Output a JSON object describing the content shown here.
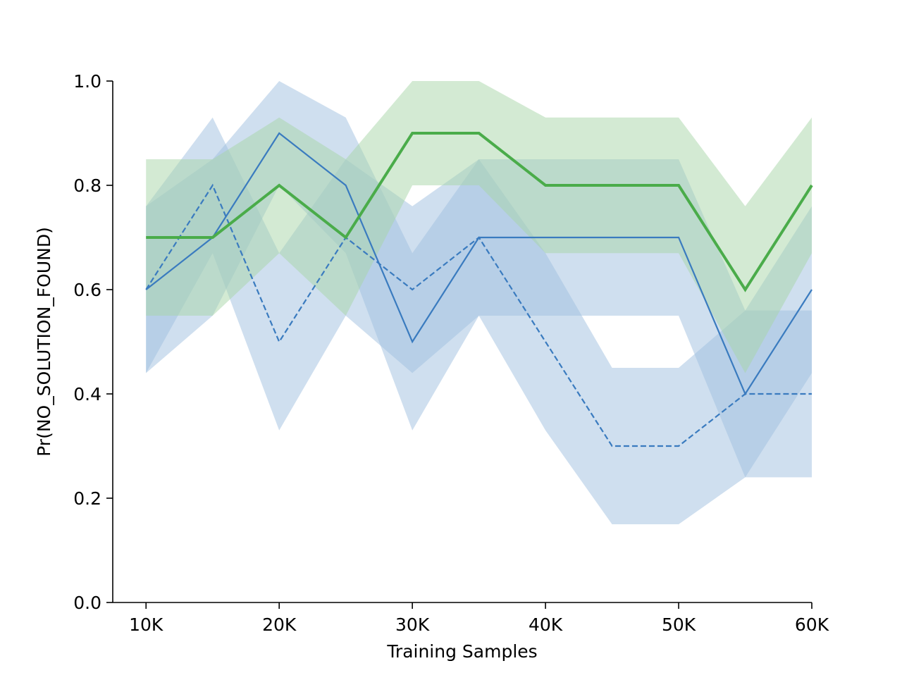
{
  "chart_data": {
    "type": "line",
    "title": "",
    "xlabel": "Training Samples",
    "ylabel": "Pr(NO_SOLUTION_FOUND)",
    "xlim": [
      7500,
      60000
    ],
    "ylim": [
      0.0,
      1.0
    ],
    "grid": false,
    "legend": "none",
    "x": [
      10000,
      15000,
      20000,
      25000,
      30000,
      35000,
      40000,
      45000,
      50000,
      55000,
      60000
    ],
    "xticks": [
      {
        "value": 10000,
        "label": "10K"
      },
      {
        "value": 20000,
        "label": "20K"
      },
      {
        "value": 30000,
        "label": "30K"
      },
      {
        "value": 40000,
        "label": "40K"
      },
      {
        "value": 50000,
        "label": "50K"
      },
      {
        "value": 60000,
        "label": "60K"
      }
    ],
    "yticks": [
      {
        "value": 0.0,
        "label": "0.0"
      },
      {
        "value": 0.2,
        "label": "0.2"
      },
      {
        "value": 0.4,
        "label": "0.4"
      },
      {
        "value": 0.6,
        "label": "0.6"
      },
      {
        "value": 0.8,
        "label": "0.8"
      },
      {
        "value": 1.0,
        "label": "1.0"
      }
    ],
    "series": [
      {
        "color": "#3a7bbf",
        "fill_color": "#9fbfdf",
        "line_style": "dashed",
        "line_width": "thin",
        "values": [
          0.6,
          0.8,
          0.5,
          0.7,
          0.6,
          0.7,
          0.5,
          0.3,
          0.3,
          0.4,
          0.4
        ],
        "lower": [
          0.44,
          0.67,
          0.33,
          0.55,
          0.44,
          0.55,
          0.33,
          0.15,
          0.15,
          0.24,
          0.24
        ],
        "upper": [
          0.76,
          0.93,
          0.67,
          0.85,
          0.76,
          0.85,
          0.67,
          0.45,
          0.45,
          0.56,
          0.56
        ]
      },
      {
        "color": "#3a7bbf",
        "fill_color": "#9fbfdf",
        "line_style": "solid",
        "line_width": "thin",
        "values": [
          0.6,
          0.7,
          0.9,
          0.8,
          0.5,
          0.7,
          0.7,
          0.7,
          0.7,
          0.4,
          0.6
        ],
        "lower": [
          0.44,
          0.55,
          0.8,
          0.67,
          0.33,
          0.55,
          0.55,
          0.55,
          0.55,
          0.24,
          0.44
        ],
        "upper": [
          0.76,
          0.85,
          1.0,
          0.93,
          0.67,
          0.85,
          0.85,
          0.85,
          0.85,
          0.56,
          0.76
        ]
      },
      {
        "color": "#4aac4a",
        "fill_color": "#a7d5a7",
        "line_style": "solid",
        "line_width": "thick",
        "values": [
          0.7,
          0.7,
          0.8,
          0.7,
          0.9,
          0.9,
          0.8,
          0.8,
          0.8,
          0.6,
          0.8
        ],
        "lower": [
          0.55,
          0.55,
          0.67,
          0.55,
          0.8,
          0.8,
          0.67,
          0.67,
          0.67,
          0.44,
          0.67
        ],
        "upper": [
          0.85,
          0.85,
          0.93,
          0.85,
          1.0,
          1.0,
          0.93,
          0.93,
          0.93,
          0.76,
          0.93
        ]
      }
    ]
  }
}
